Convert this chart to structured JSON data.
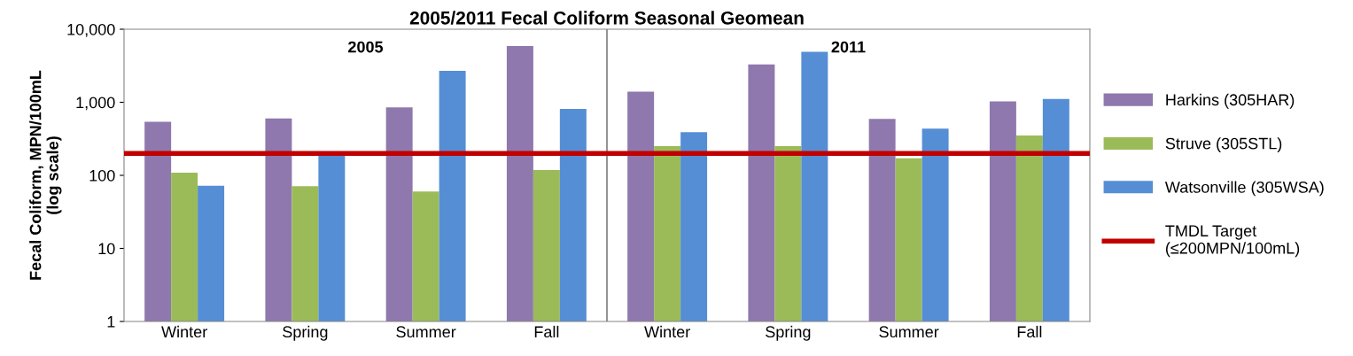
{
  "chart_data": {
    "type": "bar",
    "title": "2005/2011 Fecal Coliform Seasonal Geomean",
    "ylabel": "Fecal Coliform, MPN/100mL\n(log scale)",
    "categories": [
      "Winter",
      "Spring",
      "Summer",
      "Fall",
      "Winter",
      "Spring",
      "Summer",
      "Fall"
    ],
    "series": [
      {
        "name": "Harkins (305HAR)",
        "color": "#8e78ad",
        "values": [
          540,
          600,
          850,
          5900,
          1400,
          3300,
          590,
          1030
        ]
      },
      {
        "name": "Struve (305STL)",
        "color": "#9bbb59",
        "values": [
          108,
          70,
          59,
          117,
          250,
          250,
          170,
          350
        ]
      },
      {
        "name": "Watsonville (305WSA)",
        "color": "#558ed5",
        "values": [
          71,
          200,
          2700,
          810,
          390,
          4900,
          435,
          1110
        ]
      }
    ],
    "log": true,
    "ylim": [
      1,
      10000
    ],
    "yticks": [
      1,
      10,
      100,
      {
        "value": 1000,
        "label": "1,000"
      },
      {
        "value": 10000,
        "label": "10,000"
      }
    ],
    "ref_lines": [
      {
        "axis": "y",
        "value": 200,
        "label": "TMDL Target\n(≤200MPN/100mL)",
        "color": "#c00000"
      }
    ],
    "annotations": [
      "2005",
      "2011"
    ],
    "grid": false,
    "legend": "right"
  }
}
